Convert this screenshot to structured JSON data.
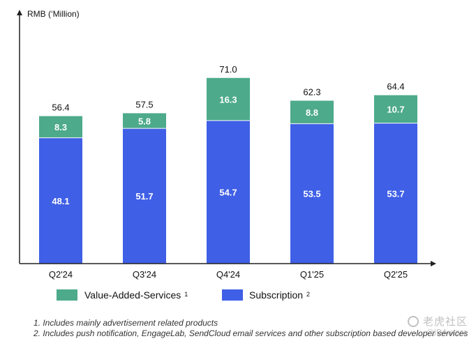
{
  "chart_data": {
    "type": "bar",
    "stacked": true,
    "ylabel": "RMB (‘Million)",
    "categories": [
      "Q2'24",
      "Q3'24",
      "Q4'24",
      "Q1'25",
      "Q2'25"
    ],
    "series": [
      {
        "name": "Subscription",
        "legend_sup": "2",
        "color": "#3f5fe6",
        "values": [
          48.1,
          51.7,
          54.7,
          53.5,
          53.7
        ]
      },
      {
        "name": "Value-Added-Services",
        "legend_sup": "1",
        "color": "#4daa8b",
        "values": [
          8.3,
          5.8,
          16.3,
          8.8,
          10.7
        ]
      }
    ],
    "totals": [
      "56.4",
      "57.5",
      "71.0",
      "62.3",
      "64.4"
    ],
    "ylim": [
      0,
      80
    ],
    "grid": false,
    "legend_position": "bottom"
  },
  "footnotes": [
    "1. Includes mainly advertisement related products",
    "2. Includes push notification, EngageLab, SendCloud email services and other subscription based developer services"
  ],
  "watermark": {
    "site": "老虎社区",
    "user": "@JDAurora"
  }
}
